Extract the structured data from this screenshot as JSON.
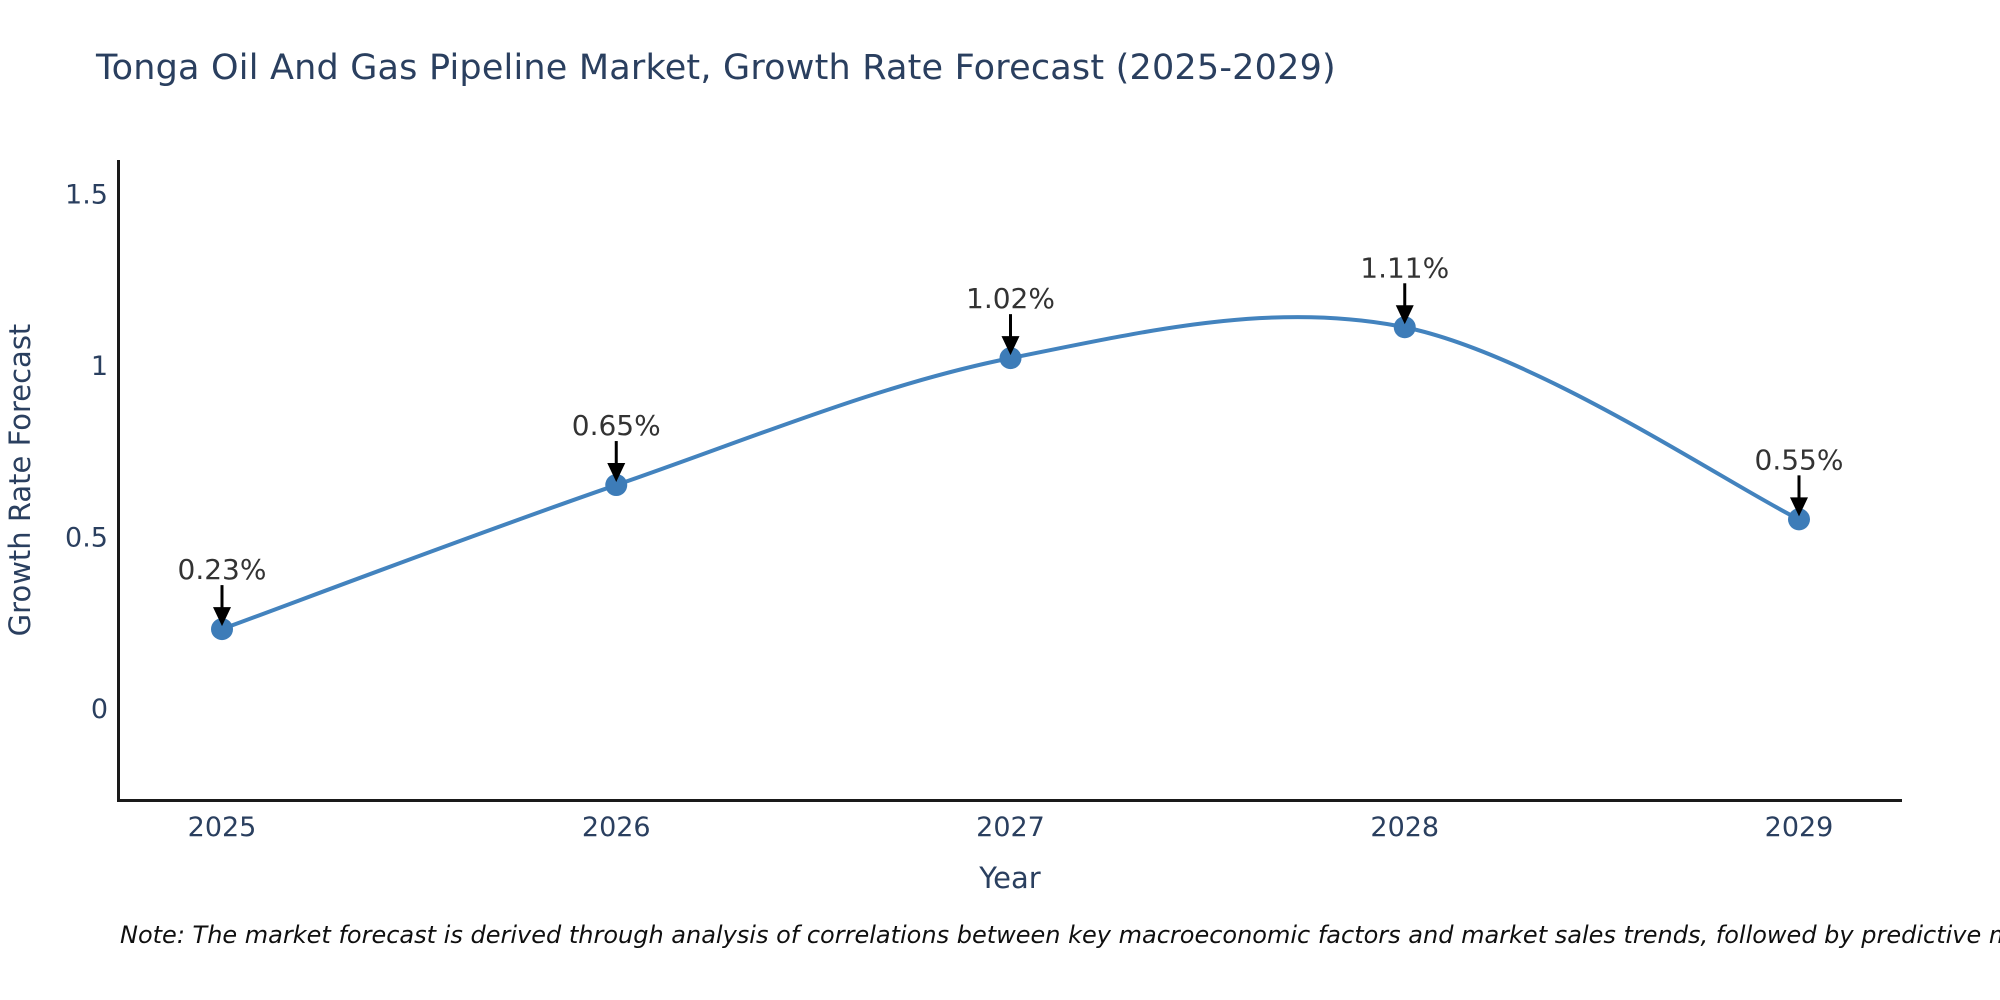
{
  "chart_data": {
    "type": "line",
    "line_shape": "spline",
    "title": "Tonga Oil And Gas Pipeline Market, Growth Rate Forecast (2025-2029)",
    "xlabel": "Year",
    "ylabel": "Growth Rate Forecast",
    "categories": [
      "2025",
      "2026",
      "2027",
      "2028",
      "2029"
    ],
    "values": [
      0.23,
      0.65,
      1.02,
      1.11,
      0.55
    ],
    "point_labels": [
      "0.23%",
      "0.65%",
      "1.02%",
      "1.11%",
      "0.55%"
    ],
    "yticks": {
      "values": [
        0,
        0.5,
        1,
        1.5
      ],
      "labels": [
        "0",
        "0.5",
        "1",
        "1.5"
      ]
    },
    "ylim": [
      -0.27,
      1.6
    ],
    "grid": false,
    "legend_position": "none",
    "annotations_style": "value labels with downward arrows above each point",
    "colors": {
      "line": "#4383be",
      "marker": "#3d7cb8",
      "arrow": "#000000",
      "annotation_text": "#333333",
      "axis_line": "#1a1a1a",
      "tick_text": "#2a3f5f",
      "title_text": "#2a3f5f",
      "background": "#ffffff"
    }
  },
  "note": "Note: The market forecast is derived through analysis of correlations between key macroeconomic factors and market sales trends, followed by predictive modeling to project future sales"
}
